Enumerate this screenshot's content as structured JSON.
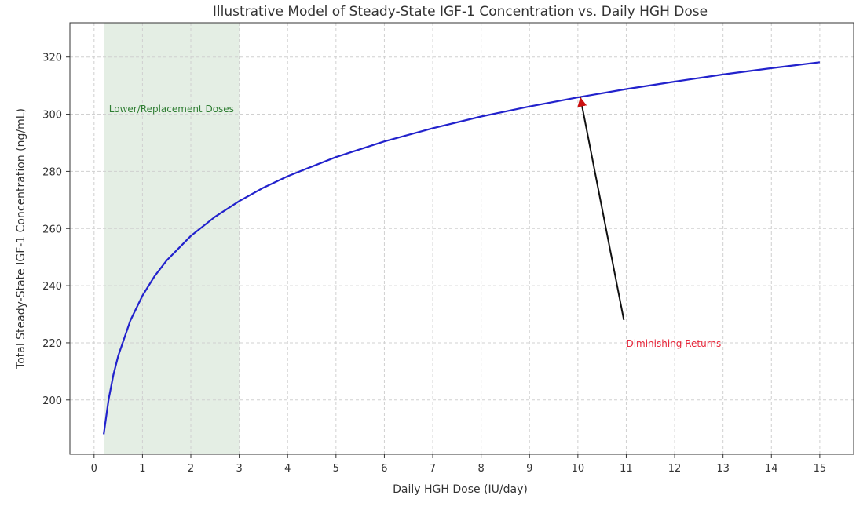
{
  "chart_data": {
    "type": "line",
    "title": "Illustrative Model of Steady-State IGF-1 Concentration vs. Daily HGH Dose",
    "xlabel": "Daily HGH Dose (IU/day)",
    "ylabel": "Total Steady-State IGF-1 Concentration (ng/mL)",
    "xlim": [
      -0.5,
      15.7
    ],
    "ylim": [
      181,
      332
    ],
    "x_ticks": [
      0,
      1,
      2,
      3,
      4,
      5,
      6,
      7,
      8,
      9,
      10,
      11,
      12,
      13,
      14,
      15
    ],
    "y_ticks": [
      200,
      220,
      240,
      260,
      280,
      300,
      320
    ],
    "grid": true,
    "series": [
      {
        "name": "IGF-1",
        "color": "#2222cc",
        "x": [
          0.2,
          0.3,
          0.4,
          0.5,
          0.75,
          1.0,
          1.25,
          1.5,
          2.0,
          2.5,
          3.0,
          3.5,
          4.0,
          5.0,
          6.0,
          7.0,
          8.0,
          9.0,
          10.0,
          11.0,
          12.0,
          13.0,
          14.0,
          15.0
        ],
        "y": [
          188,
          200.2,
          208.8,
          215.5,
          227.8,
          236.5,
          243.3,
          248.8,
          257.4,
          264.1,
          269.6,
          274.3,
          278.3,
          285.0,
          290.5,
          295.1,
          299.2,
          302.7,
          305.9,
          308.8,
          311.4,
          313.9,
          316.1,
          318.2
        ]
      }
    ],
    "shaded_regions": [
      {
        "x_start": 0.2,
        "x_end": 3.0,
        "label": "Lower/Replacement Doses",
        "color": "#2e7d32"
      }
    ],
    "annotations": [
      {
        "text": "Diminishing Returns",
        "color": "#e8273b",
        "arrow_from": [
          10.95,
          228
        ],
        "arrow_to": [
          10.05,
          306
        ],
        "text_at": [
          11.0,
          220
        ]
      }
    ]
  }
}
